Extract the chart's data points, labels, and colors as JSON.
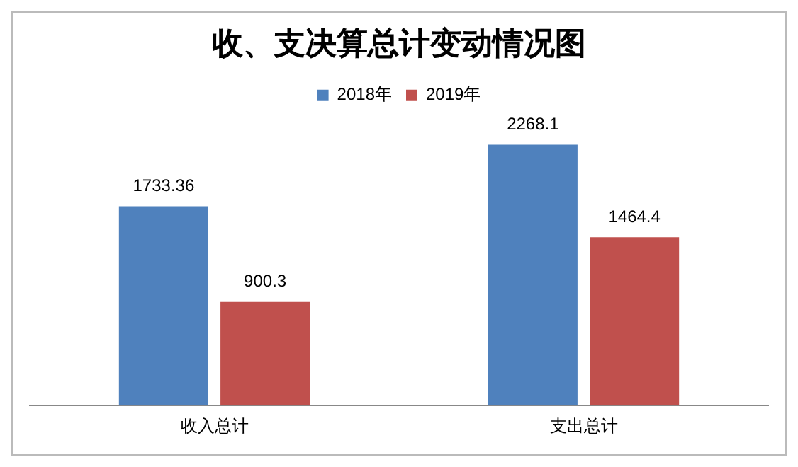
{
  "chart_data": {
    "type": "bar",
    "title": "收、支决算总计变动情况图",
    "categories": [
      "收入总计",
      "支出总计"
    ],
    "series": [
      {
        "name": "2018年",
        "color": "#4f81bd",
        "values": [
          1733.36,
          2268.1
        ]
      },
      {
        "name": "2019年",
        "color": "#c0504d",
        "values": [
          900.3,
          1464.4
        ]
      }
    ],
    "data_labels": true,
    "legend": "top",
    "grid": false
  }
}
